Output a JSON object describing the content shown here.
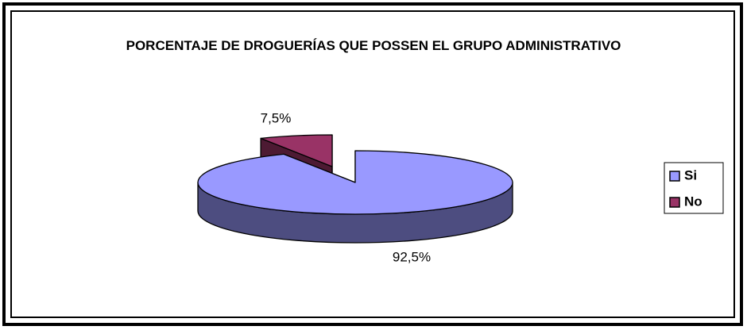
{
  "chart_data": {
    "type": "pie",
    "title": "PORCENTAJE DE DROGUERÍAS QUE POSSEN EL GRUPO ADMINISTRATIVO",
    "categories": [
      "Si",
      "No"
    ],
    "values": [
      92.5,
      7.5
    ],
    "value_labels": [
      "92,5%",
      "7,5%"
    ],
    "colors": [
      "#9999ff",
      "#993366"
    ],
    "legend": "right"
  }
}
